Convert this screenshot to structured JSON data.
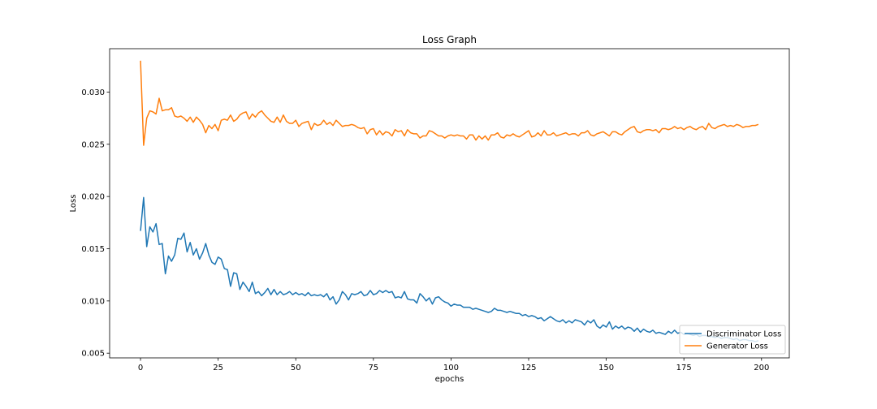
{
  "chart_data": {
    "type": "line",
    "title": "Loss Graph",
    "xlabel": "epochs",
    "ylabel": "Loss",
    "xlim": [
      -9.95,
      208.95
    ],
    "ylim": [
      0.00455,
      0.03415
    ],
    "xticks": [
      {
        "value": 0,
        "label": "0"
      },
      {
        "value": 25,
        "label": "25"
      },
      {
        "value": 50,
        "label": "50"
      },
      {
        "value": 75,
        "label": "75"
      },
      {
        "value": 100,
        "label": "100"
      },
      {
        "value": 125,
        "label": "125"
      },
      {
        "value": 150,
        "label": "150"
      },
      {
        "value": 175,
        "label": "175"
      },
      {
        "value": 200,
        "label": "200"
      }
    ],
    "yticks": [
      {
        "value": 0.005,
        "label": "0.005"
      },
      {
        "value": 0.01,
        "label": "0.010"
      },
      {
        "value": 0.015,
        "label": "0.015"
      },
      {
        "value": 0.02,
        "label": "0.020"
      },
      {
        "value": 0.025,
        "label": "0.025"
      },
      {
        "value": 0.03,
        "label": "0.030"
      }
    ],
    "grid": false,
    "legend_position": "lower-right",
    "series": [
      {
        "name": "Discriminator Loss",
        "color": "#1f77b4",
        "x_start": 0,
        "x_step": 1,
        "values": [
          0.0167,
          0.0199,
          0.0152,
          0.0171,
          0.0166,
          0.0174,
          0.0154,
          0.0155,
          0.0126,
          0.0143,
          0.0138,
          0.0144,
          0.016,
          0.0159,
          0.0165,
          0.0147,
          0.0156,
          0.0144,
          0.015,
          0.014,
          0.0146,
          0.0155,
          0.0144,
          0.0137,
          0.0135,
          0.0142,
          0.014,
          0.0131,
          0.013,
          0.0114,
          0.0127,
          0.0126,
          0.0111,
          0.0118,
          0.0114,
          0.0109,
          0.0118,
          0.0107,
          0.0109,
          0.0105,
          0.0108,
          0.0112,
          0.0106,
          0.0111,
          0.0106,
          0.0109,
          0.0106,
          0.0107,
          0.0109,
          0.0106,
          0.0108,
          0.0106,
          0.0107,
          0.0105,
          0.0108,
          0.0105,
          0.0106,
          0.0105,
          0.0106,
          0.0104,
          0.0107,
          0.0101,
          0.0104,
          0.0097,
          0.0101,
          0.0109,
          0.0106,
          0.0101,
          0.0107,
          0.0106,
          0.0107,
          0.0109,
          0.0105,
          0.0106,
          0.011,
          0.0106,
          0.0107,
          0.011,
          0.0108,
          0.011,
          0.0108,
          0.0109,
          0.0103,
          0.0104,
          0.0103,
          0.0109,
          0.0102,
          0.0101,
          0.0101,
          0.0098,
          0.0107,
          0.0104,
          0.01,
          0.0103,
          0.0097,
          0.0103,
          0.0104,
          0.0101,
          0.0099,
          0.0098,
          0.0095,
          0.0097,
          0.0096,
          0.0096,
          0.0094,
          0.0094,
          0.0094,
          0.0092,
          0.0093,
          0.0092,
          0.0091,
          0.009,
          0.0089,
          0.009,
          0.0093,
          0.0091,
          0.0091,
          0.009,
          0.0089,
          0.009,
          0.0089,
          0.0088,
          0.0088,
          0.0086,
          0.0087,
          0.0085,
          0.0086,
          0.0085,
          0.0083,
          0.0084,
          0.0081,
          0.0083,
          0.0085,
          0.0083,
          0.0081,
          0.008,
          0.0082,
          0.0079,
          0.0081,
          0.0079,
          0.0082,
          0.0081,
          0.008,
          0.0077,
          0.0081,
          0.0079,
          0.0082,
          0.0076,
          0.0074,
          0.0077,
          0.0075,
          0.008,
          0.0073,
          0.0076,
          0.0074,
          0.0076,
          0.0073,
          0.0075,
          0.0074,
          0.0071,
          0.0074,
          0.007,
          0.0073,
          0.0071,
          0.007,
          0.0072,
          0.0069,
          0.007,
          0.0069,
          0.0068,
          0.0071,
          0.0069,
          0.0072,
          0.0069,
          0.007,
          0.0068,
          0.0069,
          0.0068,
          0.0067,
          0.0068,
          0.0066,
          0.0067,
          0.0067,
          0.0066,
          0.0066,
          0.0065,
          0.0066,
          0.0064,
          0.0065,
          0.0065,
          0.0064,
          0.0063,
          0.0064,
          0.0062,
          0.0063,
          0.0063,
          0.0062,
          0.0062,
          0.0061,
          0.0062
        ]
      },
      {
        "name": "Generator Loss",
        "color": "#ff7f0e",
        "x_start": 0,
        "x_step": 1,
        "values": [
          0.033,
          0.0249,
          0.0275,
          0.0282,
          0.0281,
          0.0279,
          0.0294,
          0.0282,
          0.0283,
          0.0283,
          0.0285,
          0.0277,
          0.0276,
          0.0277,
          0.0275,
          0.0272,
          0.0276,
          0.0271,
          0.0276,
          0.0273,
          0.0269,
          0.0261,
          0.0268,
          0.0265,
          0.0269,
          0.0263,
          0.0273,
          0.0274,
          0.0273,
          0.0278,
          0.0272,
          0.0274,
          0.0278,
          0.028,
          0.0281,
          0.0274,
          0.0279,
          0.0276,
          0.028,
          0.0282,
          0.0278,
          0.0275,
          0.0272,
          0.0271,
          0.0276,
          0.0271,
          0.0278,
          0.0272,
          0.027,
          0.027,
          0.0273,
          0.0267,
          0.027,
          0.0271,
          0.0272,
          0.0264,
          0.027,
          0.0268,
          0.0269,
          0.0273,
          0.0269,
          0.0271,
          0.0268,
          0.0273,
          0.027,
          0.0267,
          0.0268,
          0.0268,
          0.0269,
          0.0268,
          0.0266,
          0.0265,
          0.0266,
          0.026,
          0.0264,
          0.0265,
          0.0259,
          0.0263,
          0.0259,
          0.0262,
          0.0261,
          0.0258,
          0.0264,
          0.0262,
          0.0263,
          0.0258,
          0.0264,
          0.0261,
          0.026,
          0.026,
          0.0256,
          0.0258,
          0.0258,
          0.0263,
          0.0262,
          0.026,
          0.0258,
          0.0258,
          0.0256,
          0.0258,
          0.0259,
          0.0258,
          0.0259,
          0.0258,
          0.0258,
          0.0255,
          0.0259,
          0.0259,
          0.0254,
          0.0258,
          0.0255,
          0.0258,
          0.0254,
          0.0259,
          0.0259,
          0.0261,
          0.0257,
          0.0256,
          0.0259,
          0.0258,
          0.026,
          0.0258,
          0.0257,
          0.0259,
          0.0261,
          0.0263,
          0.0257,
          0.0258,
          0.0261,
          0.0258,
          0.0263,
          0.0259,
          0.0259,
          0.0261,
          0.0258,
          0.0259,
          0.026,
          0.0261,
          0.0259,
          0.026,
          0.026,
          0.0258,
          0.0261,
          0.0261,
          0.0263,
          0.0259,
          0.0258,
          0.026,
          0.0261,
          0.0262,
          0.026,
          0.0258,
          0.0262,
          0.0262,
          0.026,
          0.0259,
          0.0262,
          0.0264,
          0.0266,
          0.0267,
          0.0262,
          0.0261,
          0.0263,
          0.0264,
          0.0264,
          0.0263,
          0.0264,
          0.0261,
          0.0265,
          0.0265,
          0.0264,
          0.0265,
          0.0267,
          0.0265,
          0.0266,
          0.0264,
          0.0266,
          0.0267,
          0.0265,
          0.0264,
          0.0266,
          0.0267,
          0.0264,
          0.027,
          0.0266,
          0.0265,
          0.0267,
          0.0268,
          0.0269,
          0.0267,
          0.0268,
          0.0267,
          0.0269,
          0.0268,
          0.0266,
          0.0267,
          0.0267,
          0.0268,
          0.0268,
          0.0269
        ]
      }
    ]
  }
}
